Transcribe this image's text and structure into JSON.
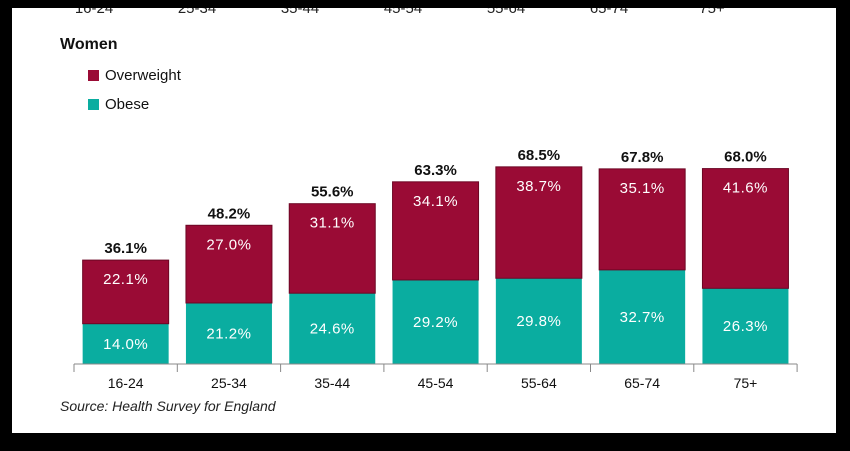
{
  "chart_data": {
    "type": "bar",
    "stacked": true,
    "title": "Women",
    "categories": [
      "16-24",
      "25-34",
      "35-44",
      "45-54",
      "55-64",
      "65-74",
      "75+"
    ],
    "series": [
      {
        "name": "Obese",
        "color": "#0aada0",
        "values": [
          14.0,
          21.2,
          24.6,
          29.2,
          29.8,
          32.7,
          26.3
        ],
        "labels": [
          "14.0%",
          "21.2%",
          "24.6%",
          "29.2%",
          "29.8%",
          "32.7%",
          "26.3%"
        ]
      },
      {
        "name": "Overweight",
        "color": "#9a0b35",
        "values": [
          22.1,
          27.0,
          31.1,
          34.1,
          38.7,
          35.1,
          41.6
        ],
        "labels": [
          "22.1%",
          "27.0%",
          "31.1%",
          "34.1%",
          "38.7%",
          "35.1%",
          "41.6%"
        ]
      }
    ],
    "totals": [
      "36.1%",
      "48.2%",
      "55.6%",
      "63.3%",
      "68.5%",
      "67.8%",
      "68.0%"
    ],
    "total_values": [
      36.1,
      48.2,
      55.6,
      63.3,
      68.5,
      67.8,
      68.0
    ],
    "legend": [
      {
        "label": "Overweight",
        "color": "#9a0b35"
      },
      {
        "label": "Obese",
        "color": "#0aada0"
      }
    ],
    "legend_position": "top-left",
    "ylim": [
      0,
      80
    ],
    "grid": false,
    "source": "Source: Health Survey for England"
  }
}
